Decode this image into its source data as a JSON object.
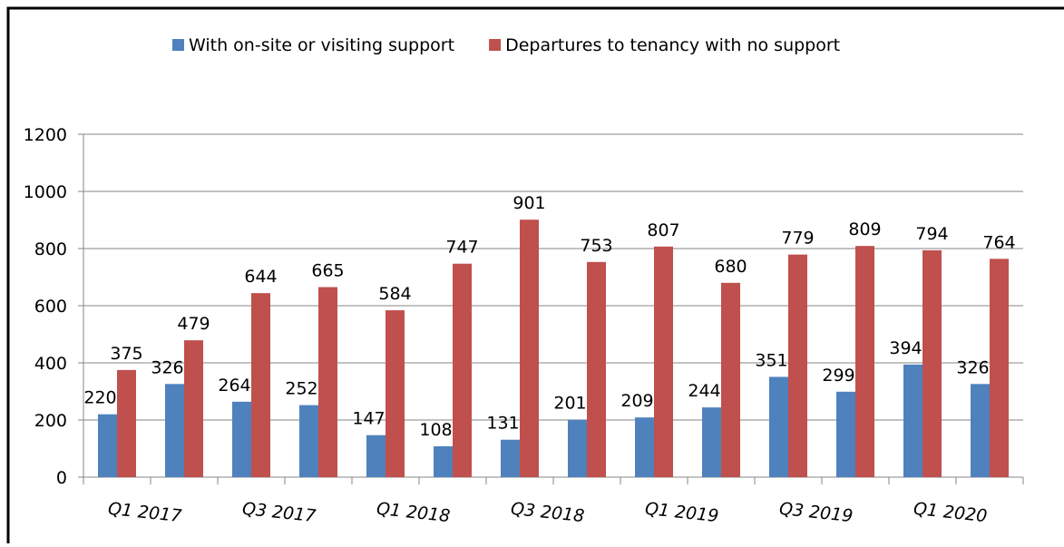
{
  "chart_data": {
    "type": "bar",
    "categories": [
      "Q1 2017",
      null,
      "Q3 2017",
      null,
      "Q1 2018",
      null,
      "Q3 2018",
      null,
      "Q1 2019",
      null,
      "Q3 2019",
      null,
      "Q1 2020",
      null
    ],
    "series": [
      {
        "name": "With on-site or visiting support",
        "color": "#4f81bd",
        "values": [
          220,
          326,
          264,
          252,
          147,
          108,
          131,
          201,
          209,
          244,
          351,
          299,
          394,
          326
        ]
      },
      {
        "name": "Departures to tenancy with no support",
        "color": "#c0504d",
        "values": [
          375,
          479,
          644,
          665,
          584,
          747,
          901,
          753,
          807,
          680,
          779,
          809,
          794,
          764
        ]
      }
    ],
    "ylim": [
      0,
      1200
    ],
    "yticks": [
      0,
      200,
      400,
      600,
      800,
      1000,
      1200
    ],
    "grid": true,
    "legend": "top"
  }
}
